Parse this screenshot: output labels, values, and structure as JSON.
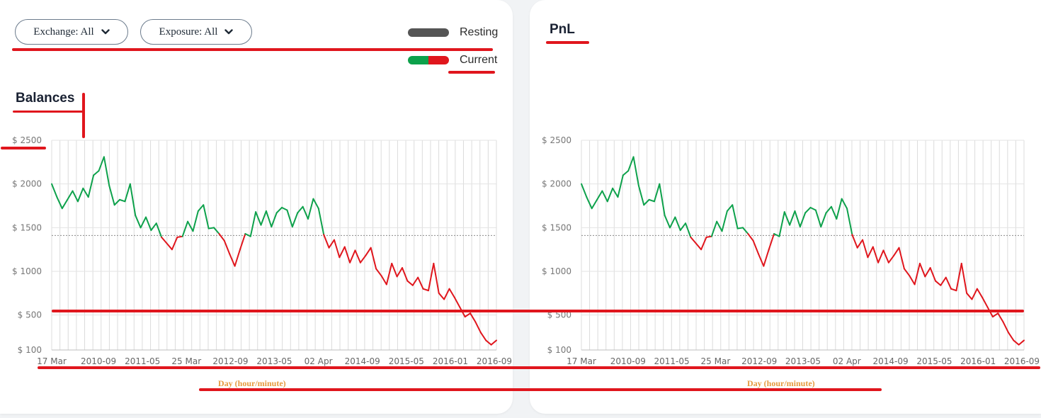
{
  "filters": {
    "exchange_label": "Exchange: All",
    "exposure_label": "Exposure: All"
  },
  "legend": {
    "resting_label": "Resting",
    "current_label": "Current",
    "resting_color": "#555555",
    "current_colors": [
      "#0da14b",
      "#e0161d"
    ]
  },
  "balances_panel": {
    "title": "Balances",
    "x_axis_title": "Day (hour/minute)"
  },
  "pnl_panel": {
    "title": "PnL",
    "x_axis_title": "Day (hour/minute)"
  },
  "colors": {
    "up": "#0da14b",
    "down": "#e0161d",
    "annotation": "#e0161d"
  },
  "chart_data": [
    {
      "type": "line",
      "ylim": [
        100,
        2500
      ],
      "y_ticks": [
        "$ 2500",
        "$ 2000",
        "$ 1500",
        "$ 1000",
        "$ 500",
        "$ 100"
      ],
      "y_tick_values": [
        2500,
        2000,
        1500,
        1000,
        500,
        100
      ],
      "x_tick_labels": [
        "17 Mar",
        "2010-09",
        "2011-05",
        "25 Mar",
        "2012-09",
        "2013-05",
        "02 Apr",
        "2014-09",
        "2015-05",
        "2016-01",
        "2016-09"
      ],
      "reference_line": 1410,
      "values": [
        2000,
        1850,
        1720,
        1820,
        1920,
        1800,
        1950,
        1850,
        2100,
        2150,
        2310,
        1980,
        1760,
        1820,
        1800,
        2000,
        1640,
        1500,
        1620,
        1470,
        1550,
        1390,
        1320,
        1250,
        1390,
        1400,
        1570,
        1460,
        1690,
        1760,
        1490,
        1500,
        1430,
        1350,
        1200,
        1060,
        1250,
        1430,
        1400,
        1680,
        1530,
        1690,
        1510,
        1670,
        1730,
        1700,
        1510,
        1670,
        1740,
        1600,
        1830,
        1720,
        1420,
        1270,
        1360,
        1160,
        1280,
        1100,
        1240,
        1100,
        1180,
        1270,
        1030,
        950,
        850,
        1090,
        940,
        1040,
        890,
        840,
        930,
        800,
        780,
        1090,
        750,
        680,
        800,
        700,
        590,
        480,
        520,
        420,
        300,
        210,
        160,
        210
      ]
    },
    {
      "type": "line",
      "ylim": [
        100,
        2500
      ],
      "y_ticks": [
        "$ 2500",
        "$ 2000",
        "$ 1500",
        "$ 1000",
        "$ 500",
        "$ 100"
      ],
      "y_tick_values": [
        2500,
        2000,
        1500,
        1000,
        500,
        100
      ],
      "x_tick_labels": [
        "17 Mar",
        "2010-09",
        "2011-05",
        "25 Mar",
        "2012-09",
        "2013-05",
        "02 Apr",
        "2014-09",
        "2015-05",
        "2016-01",
        "2016-09"
      ],
      "reference_line": 1410,
      "values": [
        2000,
        1850,
        1720,
        1820,
        1920,
        1800,
        1950,
        1850,
        2100,
        2150,
        2310,
        1980,
        1760,
        1820,
        1800,
        2000,
        1640,
        1500,
        1620,
        1470,
        1550,
        1390,
        1320,
        1250,
        1390,
        1400,
        1570,
        1460,
        1690,
        1760,
        1490,
        1500,
        1430,
        1350,
        1200,
        1060,
        1250,
        1430,
        1400,
        1680,
        1530,
        1690,
        1510,
        1670,
        1730,
        1700,
        1510,
        1670,
        1740,
        1600,
        1830,
        1720,
        1420,
        1270,
        1360,
        1160,
        1280,
        1100,
        1240,
        1100,
        1180,
        1270,
        1030,
        950,
        850,
        1090,
        940,
        1040,
        890,
        840,
        930,
        800,
        780,
        1090,
        750,
        680,
        800,
        700,
        590,
        480,
        520,
        420,
        300,
        210,
        160,
        210
      ]
    }
  ]
}
